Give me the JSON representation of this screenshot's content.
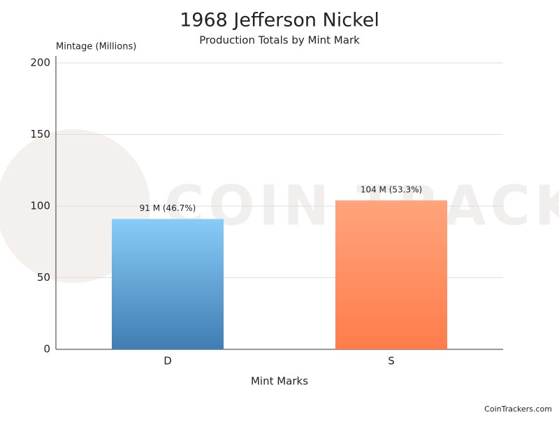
{
  "chart_data": {
    "type": "bar",
    "title": "1968 Jefferson Nickel",
    "subtitle": "Production Totals by Mint Mark",
    "y_label": "Mintage (Millions)",
    "x_label": "Mint Marks",
    "categories": [
      "D",
      "S"
    ],
    "values": [
      91,
      104
    ],
    "value_labels": [
      "91 M (46.7%)",
      "104 M (53.3%)"
    ],
    "gradients": [
      [
        "#88ccf8",
        "#3f7db3"
      ],
      [
        "#ffa47c",
        "#ff7c4b"
      ]
    ],
    "ylim": [
      0,
      200
    ],
    "yticks": [
      0,
      50,
      100,
      150,
      200
    ],
    "grid": true,
    "watermark": "COIN TRACKERS",
    "footer": "CoinTrackers.com"
  }
}
